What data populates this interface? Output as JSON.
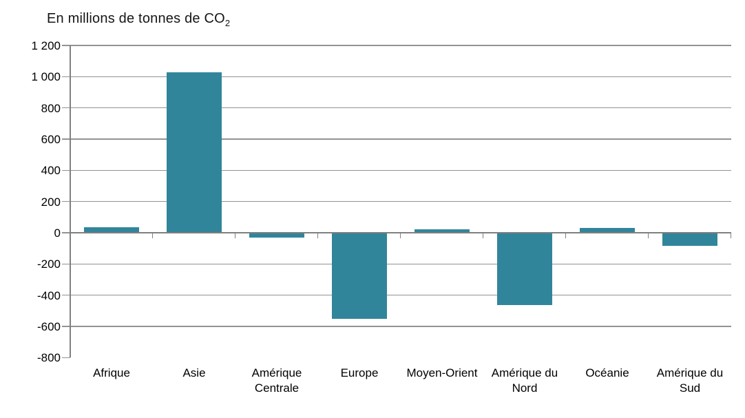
{
  "chart_data": {
    "type": "bar",
    "title": "En millions de tonnes de CO₂",
    "title_prefix": "En millions de tonnes de CO",
    "title_subscript": "2",
    "categories": [
      "Afrique",
      "Asie",
      "Amérique Centrale",
      "Europe",
      "Moyen-Orient",
      "Amérique du Nord",
      "Océanie",
      "Amérique du Sud"
    ],
    "values": [
      35,
      1030,
      -30,
      -550,
      20,
      -465,
      30,
      -85
    ],
    "xlabel": "",
    "ylabel": "",
    "ylim": [
      -800,
      1200
    ],
    "ytick_step": 200,
    "ytick_values": [
      1200,
      1000,
      800,
      600,
      400,
      200,
      0,
      -200,
      -400,
      -600,
      -800
    ],
    "ytick_labels": [
      "1 200",
      "1 000",
      "800",
      "600",
      "400",
      "200",
      "0",
      "-200",
      "-400",
      "-600",
      "-800"
    ],
    "grid": true,
    "legend_position": "none",
    "bar_color": "#31859B",
    "gridline_color": "#909294",
    "axis_color": "#7F7F7F",
    "background_color": "#FFFFFF",
    "text_color": "#000000"
  }
}
